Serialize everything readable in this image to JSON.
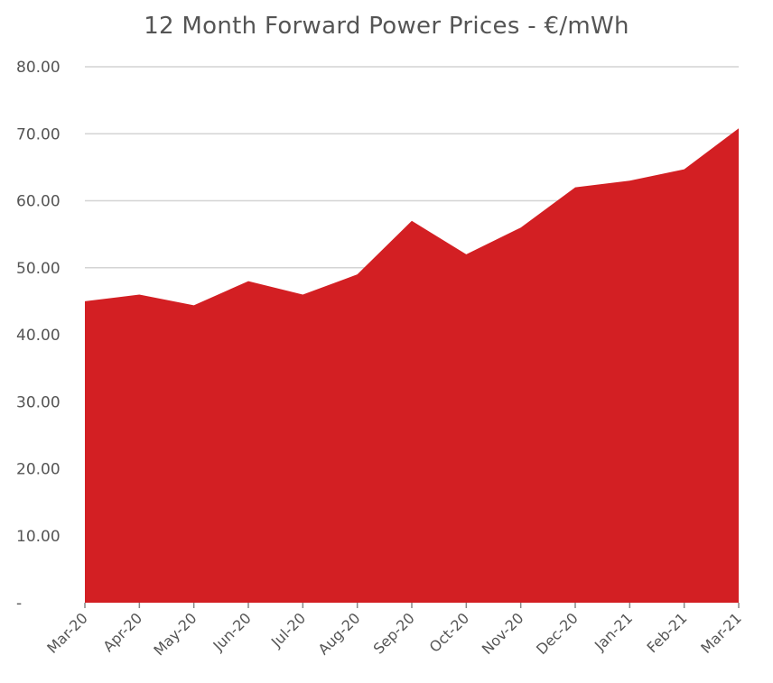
{
  "chart_data": {
    "type": "area",
    "title": "12 Month Forward Power Prices - €/mWh",
    "xlabel": "",
    "ylabel": "",
    "categories": [
      "Mar-20",
      "Apr-20",
      "May-20",
      "Jun-20",
      "Jul-20",
      "Aug-20",
      "Sep-20",
      "Oct-20",
      "Nov-20",
      "Dec-20",
      "Jan-21",
      "Feb-21",
      "Mar-21"
    ],
    "series": [
      {
        "values": [
          45.0,
          46.0,
          44.4,
          48.0,
          46.0,
          49.0,
          57.0,
          52.0,
          56.0,
          62.0,
          63.0,
          64.7,
          70.8
        ]
      }
    ],
    "ylim": [
      0,
      80
    ],
    "yticks": [
      0,
      10,
      20,
      30,
      40,
      50,
      60,
      70,
      80
    ],
    "ytick_labels": [
      "-",
      "10.00",
      "20.00",
      "30.00",
      "40.00",
      "50.00",
      "60.00",
      "70.00",
      "80.00"
    ],
    "grid": true,
    "legend": "none",
    "colors": {
      "area_fill": "#d31f23",
      "grid": "#d4d4d4",
      "text": "#555555"
    }
  }
}
